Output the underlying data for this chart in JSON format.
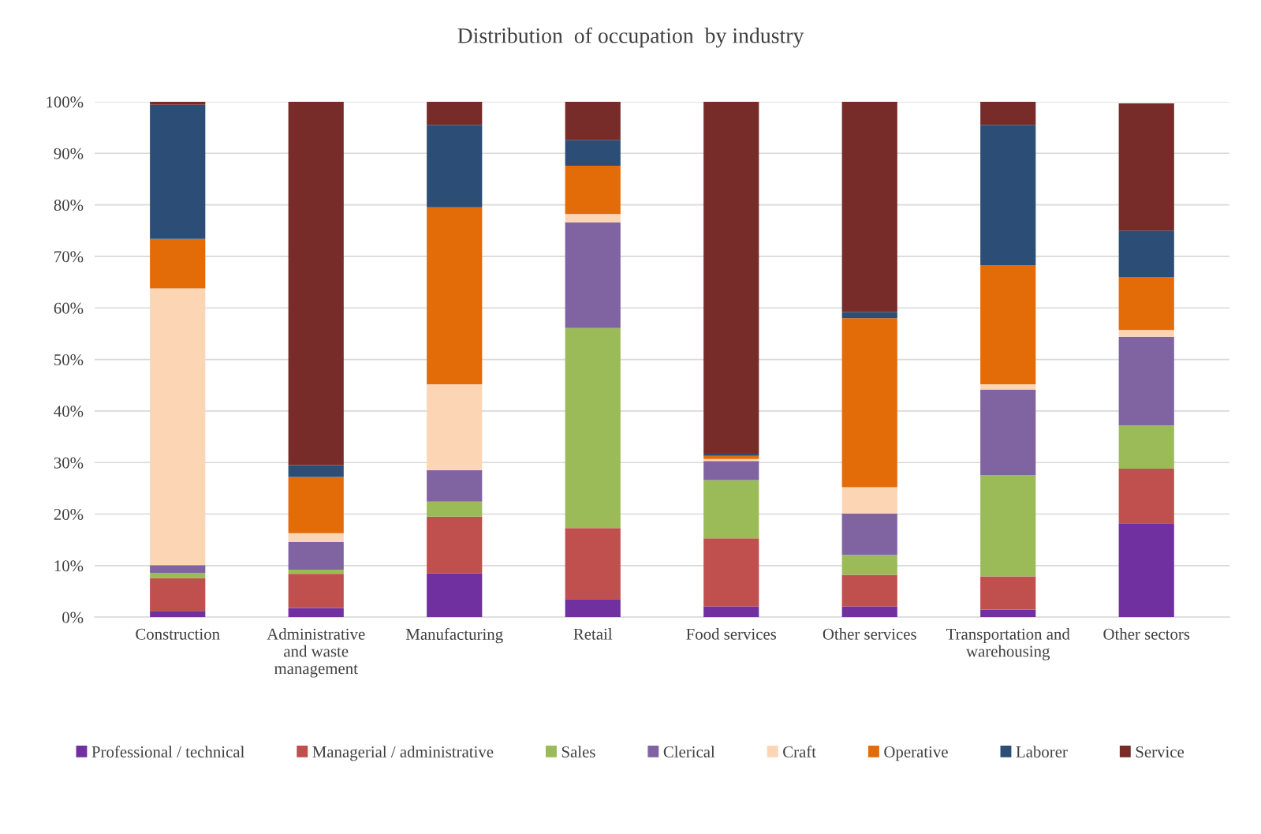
{
  "chart_data": {
    "type": "bar",
    "title": "Distribution  of occupation  by industry",
    "stacked": true,
    "categories": [
      "Construction",
      "Administrative\nand waste\nmanagement",
      "Manufacturing",
      "Retail",
      "Food services",
      "Other services",
      "Transportation and\nwarehousing",
      "Other sectors"
    ],
    "series": [
      {
        "name": "Professional / technical",
        "color": "#7030a0",
        "values": [
          1.2,
          1.8,
          8.5,
          3.5,
          2.1,
          2.1,
          1.5,
          18.2
        ]
      },
      {
        "name": "Managerial / administrative",
        "color": "#c0504d",
        "values": [
          6.4,
          6.6,
          11.0,
          13.8,
          13.2,
          6.1,
          6.4,
          10.6
        ]
      },
      {
        "name": "Sales",
        "color": "#9bbb59",
        "values": [
          1.0,
          0.8,
          2.9,
          38.8,
          11.3,
          3.9,
          19.7,
          8.4
        ]
      },
      {
        "name": "Clerical",
        "color": "#8064a2",
        "values": [
          1.5,
          5.4,
          6.1,
          20.5,
          3.7,
          8.0,
          16.5,
          17.2
        ]
      },
      {
        "name": "Craft",
        "color": "#fcd5b5",
        "values": [
          53.7,
          1.7,
          16.7,
          1.6,
          0.4,
          5.1,
          1.1,
          1.3
        ]
      },
      {
        "name": "Operative",
        "color": "#e36c09",
        "values": [
          9.6,
          10.9,
          34.3,
          9.4,
          0.6,
          32.8,
          23.1,
          10.3
        ]
      },
      {
        "name": "Laborer",
        "color": "#2c4d75",
        "values": [
          26.0,
          2.3,
          16.0,
          5.0,
          0.4,
          1.2,
          27.2,
          9.0
        ]
      },
      {
        "name": "Service",
        "color": "#772c2a",
        "values": [
          0.6,
          70.5,
          4.5,
          7.4,
          68.3,
          40.8,
          4.5,
          24.7
        ]
      }
    ],
    "ylim": [
      0,
      100
    ],
    "yticks": [
      {
        "value": 0,
        "label": "0%"
      },
      {
        "value": 10,
        "label": "10%"
      },
      {
        "value": 20,
        "label": "20%"
      },
      {
        "value": 30,
        "label": "30%"
      },
      {
        "value": 40,
        "label": "40%"
      },
      {
        "value": 50,
        "label": "50%"
      },
      {
        "value": 60,
        "label": "60%"
      },
      {
        "value": 70,
        "label": "70%"
      },
      {
        "value": 80,
        "label": "80%"
      },
      {
        "value": 90,
        "label": "90%"
      },
      {
        "value": 100,
        "label": "100%"
      }
    ],
    "grid": "y",
    "legend": "bottom"
  }
}
